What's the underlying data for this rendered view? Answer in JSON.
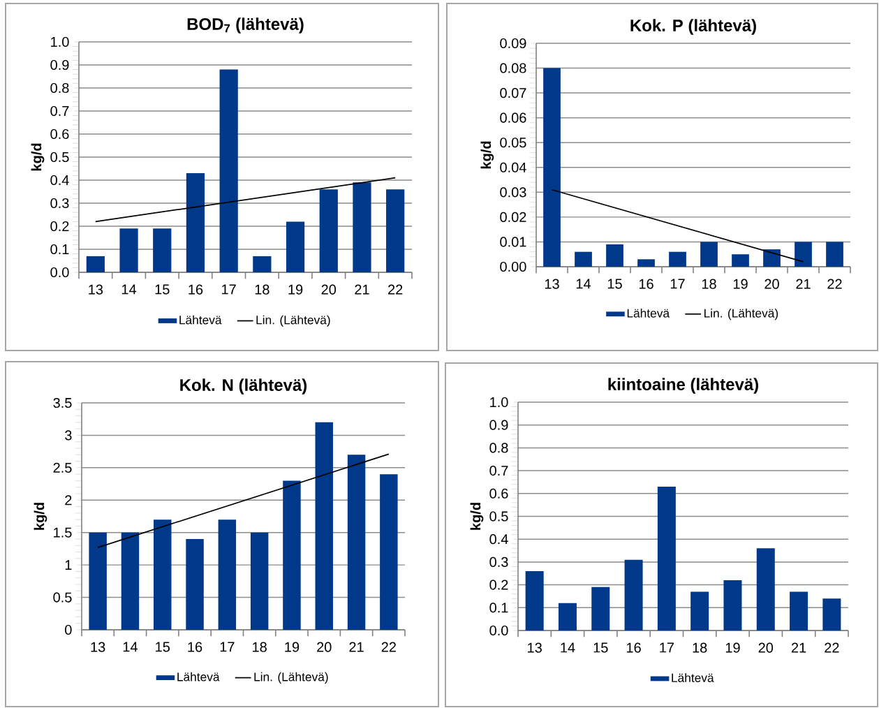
{
  "chart_data": [
    {
      "type": "bar",
      "title": "BOD$_{7}$ (lähtevä)",
      "ylabel": "kg/d",
      "categories": [
        "13",
        "14",
        "15",
        "16",
        "17",
        "18",
        "19",
        "20",
        "21",
        "22"
      ],
      "ylim": [
        0,
        1
      ],
      "yticks": [
        {
          "value": 0,
          "label": "0.0"
        },
        {
          "value": 0.1,
          "label": "0.1"
        },
        {
          "value": 0.2,
          "label": "0.2"
        },
        {
          "value": 0.3,
          "label": "0.3"
        },
        {
          "value": 0.4,
          "label": "0.4"
        },
        {
          "value": 0.5,
          "label": "0.5"
        },
        {
          "value": 0.6,
          "label": "0.6"
        },
        {
          "value": 0.7,
          "label": "0.7"
        },
        {
          "value": 0.8,
          "label": "0.8"
        },
        {
          "value": 0.9,
          "label": "0.9"
        },
        {
          "value": 1,
          "label": "1.0"
        }
      ],
      "grid": "y",
      "legend": "bottom",
      "series": [
        {
          "name": "Lähtevä",
          "color": "#00388a",
          "values": [
            0.07,
            0.19,
            0.19,
            0.43,
            0.88,
            0.07,
            0.22,
            0.36,
            0.39,
            0.36
          ]
        },
        {
          "name": "Lin. (Lähtevä)",
          "type": "line",
          "color": "#000000",
          "x": [
            "13",
            "22"
          ],
          "values": [
            0.22,
            0.41
          ]
        }
      ]
    },
    {
      "type": "bar",
      "title": "Kok. P (lähtevä)",
      "ylabel": "kg/d",
      "categories": [
        "13",
        "14",
        "15",
        "16",
        "17",
        "18",
        "19",
        "20",
        "21",
        "22"
      ],
      "ylim": [
        0,
        0.09
      ],
      "yticks": [
        {
          "value": 0,
          "label": "0.00"
        },
        {
          "value": 0.01,
          "label": "0.01"
        },
        {
          "value": 0.02,
          "label": "0.02"
        },
        {
          "value": 0.03,
          "label": "0.03"
        },
        {
          "value": 0.04,
          "label": "0.04"
        },
        {
          "value": 0.05,
          "label": "0.05"
        },
        {
          "value": 0.06,
          "label": "0.06"
        },
        {
          "value": 0.07,
          "label": "0.07"
        },
        {
          "value": 0.08,
          "label": "0.08"
        },
        {
          "value": 0.09,
          "label": "0.09"
        }
      ],
      "grid": "y",
      "legend": "bottom",
      "series": [
        {
          "name": "Lähtevä",
          "color": "#00388a",
          "values": [
            0.08,
            0.006,
            0.009,
            0.003,
            0.006,
            0.01,
            0.005,
            0.007,
            0.01,
            0.01
          ]
        },
        {
          "name": "Lin. (Lähtevä)",
          "type": "line",
          "color": "#000000",
          "x": [
            "13",
            "21"
          ],
          "values": [
            0.031,
            0.002
          ]
        }
      ]
    },
    {
      "type": "bar",
      "title": "Kok. N (lähtevä)",
      "ylabel": "kg/d",
      "categories": [
        "13",
        "14",
        "15",
        "16",
        "17",
        "18",
        "19",
        "20",
        "21",
        "22"
      ],
      "ylim": [
        0,
        3.5
      ],
      "yticks": [
        0,
        0.5,
        1,
        1.5,
        2,
        2.5,
        3,
        3.5
      ],
      "grid": "y",
      "legend": "bottom",
      "series": [
        {
          "name": "Lähtevä",
          "color": "#00388a",
          "values": [
            1.5,
            1.5,
            1.7,
            1.4,
            1.7,
            1.5,
            2.3,
            3.2,
            2.7,
            2.4
          ]
        },
        {
          "name": "Lin. (Lähtevä)",
          "type": "line",
          "color": "#000000",
          "x": [
            "13",
            "22"
          ],
          "values": [
            1.27,
            2.71
          ]
        }
      ]
    },
    {
      "type": "bar",
      "title": "kiintoaine (lähtevä)",
      "ylabel": "kg/d",
      "categories": [
        "13",
        "14",
        "15",
        "16",
        "17",
        "18",
        "19",
        "20",
        "21",
        "22"
      ],
      "ylim": [
        0,
        1
      ],
      "yticks": [
        {
          "value": 0,
          "label": "0.0"
        },
        {
          "value": 0.1,
          "label": "0.1"
        },
        {
          "value": 0.2,
          "label": "0.2"
        },
        {
          "value": 0.3,
          "label": "0.3"
        },
        {
          "value": 0.4,
          "label": "0.4"
        },
        {
          "value": 0.5,
          "label": "0.5"
        },
        {
          "value": 0.6,
          "label": "0.6"
        },
        {
          "value": 0.7,
          "label": "0.7"
        },
        {
          "value": 0.8,
          "label": "0.8"
        },
        {
          "value": 0.9,
          "label": "0.9"
        },
        {
          "value": 1,
          "label": "1.0"
        }
      ],
      "grid": "y",
      "legend": "bottom",
      "series": [
        {
          "name": "Lähtevä",
          "color": "#00388a",
          "values": [
            0.26,
            0.12,
            0.19,
            0.31,
            0.63,
            0.17,
            0.22,
            0.36,
            0.17,
            0.14
          ]
        }
      ]
    }
  ]
}
